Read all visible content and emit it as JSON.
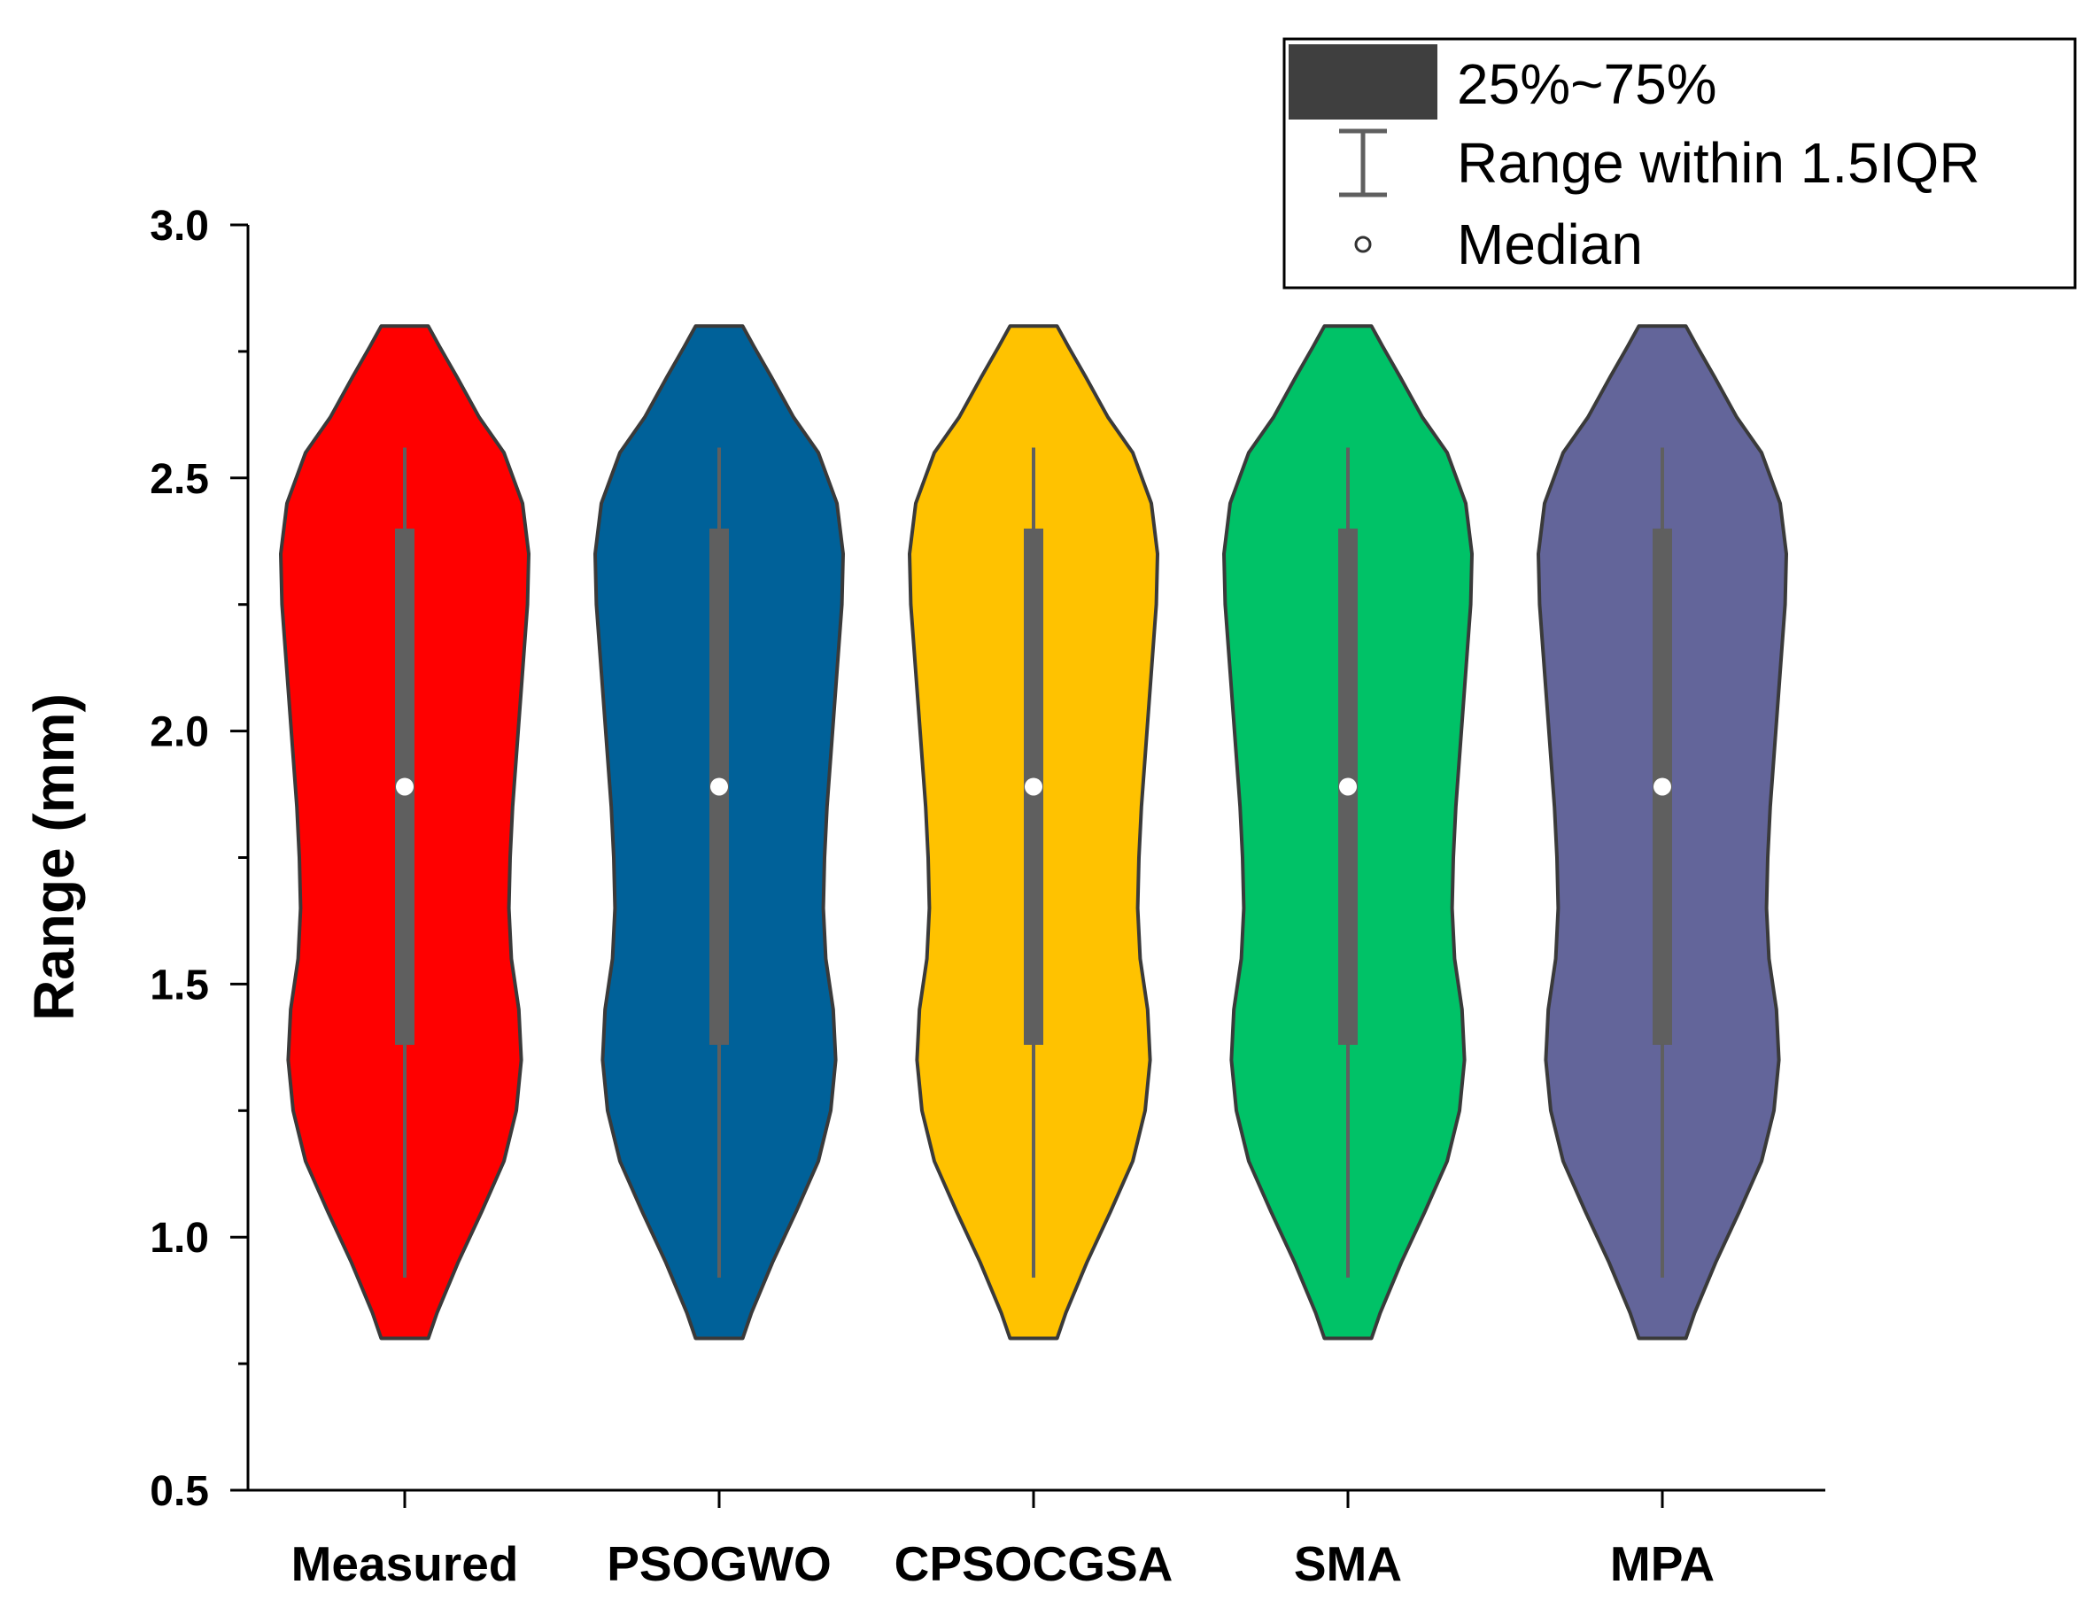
{
  "chart_data": {
    "type": "violin",
    "title": "",
    "xlabel": "",
    "ylabel": "Range (mm)",
    "ylim": [
      0.5,
      3.0
    ],
    "yticks": [
      {
        "value": 0.5,
        "label": "0.5"
      },
      {
        "value": 1.0,
        "label": "1.0"
      },
      {
        "value": 1.5,
        "label": "1.5"
      },
      {
        "value": 2.0,
        "label": "2.0"
      },
      {
        "value": 2.5,
        "label": "2.5"
      },
      {
        "value": 3.0,
        "label": "3.0"
      }
    ],
    "yminor_ticks": [
      0.75,
      1.25,
      1.75,
      2.25,
      2.75
    ],
    "categories": [
      "Measured",
      "PSOGWO",
      "CPSOCGSA",
      "SMA",
      "MPA"
    ],
    "colors": [
      "#ff0000",
      "#006199",
      "#ffc200",
      "#00c267",
      "#63659a"
    ],
    "outline_color": "#3a3a3a",
    "box_color": "#5f5f5f",
    "series": [
      {
        "name": "Measured",
        "min": 0.8,
        "max": 2.8,
        "q1": 1.38,
        "q3": 2.4,
        "median": 1.89,
        "whisker_low": 0.92,
        "whisker_high": 2.56
      },
      {
        "name": "PSOGWO",
        "min": 0.8,
        "max": 2.8,
        "q1": 1.38,
        "q3": 2.4,
        "median": 1.89,
        "whisker_low": 0.92,
        "whisker_high": 2.56
      },
      {
        "name": "CPSOCGSA",
        "min": 0.8,
        "max": 2.8,
        "q1": 1.38,
        "q3": 2.4,
        "median": 1.89,
        "whisker_low": 0.92,
        "whisker_high": 2.56
      },
      {
        "name": "SMA",
        "min": 0.8,
        "max": 2.8,
        "q1": 1.38,
        "q3": 2.4,
        "median": 1.89,
        "whisker_low": 0.92,
        "whisker_high": 2.56
      },
      {
        "name": "MPA",
        "min": 0.8,
        "max": 2.8,
        "q1": 1.38,
        "q3": 2.4,
        "median": 1.89,
        "whisker_low": 0.92,
        "whisker_high": 2.56
      }
    ],
    "density_profile": [
      {
        "y": 0.8,
        "w": 0.19
      },
      {
        "y": 0.85,
        "w": 0.26
      },
      {
        "y": 0.95,
        "w": 0.43
      },
      {
        "y": 1.05,
        "w": 0.62
      },
      {
        "y": 1.15,
        "w": 0.8
      },
      {
        "y": 1.25,
        "w": 0.9
      },
      {
        "y": 1.35,
        "w": 0.94
      },
      {
        "y": 1.45,
        "w": 0.92
      },
      {
        "y": 1.55,
        "w": 0.86
      },
      {
        "y": 1.65,
        "w": 0.84
      },
      {
        "y": 1.75,
        "w": 0.85
      },
      {
        "y": 1.85,
        "w": 0.87
      },
      {
        "y": 1.95,
        "w": 0.9
      },
      {
        "y": 2.05,
        "w": 0.93
      },
      {
        "y": 2.15,
        "w": 0.96
      },
      {
        "y": 2.25,
        "w": 0.99
      },
      {
        "y": 2.35,
        "w": 1.0
      },
      {
        "y": 2.45,
        "w": 0.95
      },
      {
        "y": 2.55,
        "w": 0.8
      },
      {
        "y": 2.62,
        "w": 0.6
      },
      {
        "y": 2.7,
        "w": 0.42
      },
      {
        "y": 2.76,
        "w": 0.28
      },
      {
        "y": 2.8,
        "w": 0.19
      }
    ],
    "legend": {
      "position": "top-right",
      "items": [
        {
          "symbol": "box",
          "label": "25%~75%"
        },
        {
          "symbol": "whisker",
          "label": "Range within 1.5IQR"
        },
        {
          "symbol": "median",
          "label": "Median"
        }
      ]
    }
  }
}
